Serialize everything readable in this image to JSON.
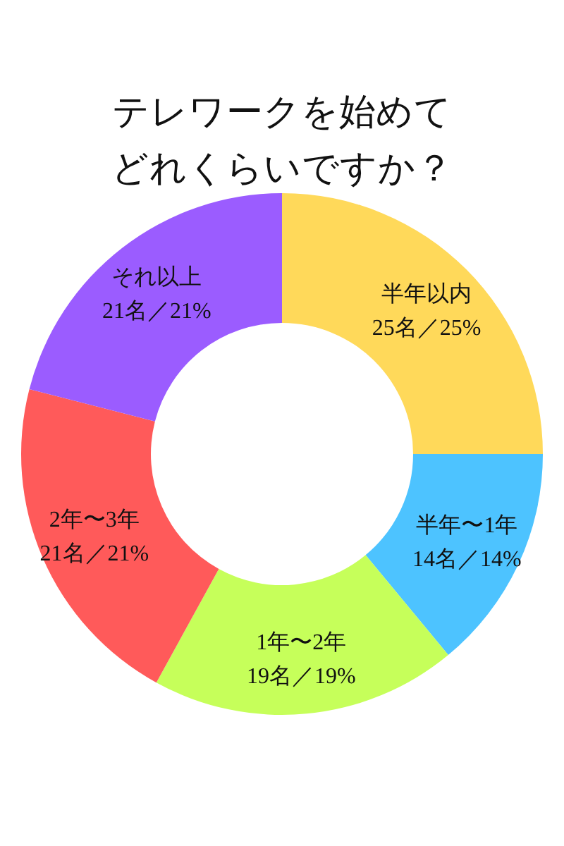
{
  "chart_data": {
    "type": "donut",
    "title": "テレワークを始めてどれくらいですか？",
    "categories": [
      "半年以内",
      "半年〜1年",
      "1年〜2年",
      "2年〜3年",
      "それ以上"
    ],
    "values": [
      25,
      14,
      19,
      21,
      21
    ],
    "value_labels": [
      "25名／25%",
      "14名／14%",
      "19名／19%",
      "21名／21%",
      "21名／21%"
    ],
    "colors": [
      "#ffd95a",
      "#4dc3ff",
      "#c6ff5a",
      "#ff5a5a",
      "#9b5cff"
    ]
  }
}
